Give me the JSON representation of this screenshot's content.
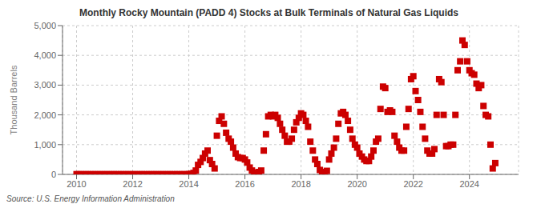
{
  "chart_data": {
    "type": "scatter",
    "title": "Monthly Rocky Mountain (PADD 4) Stocks at Bulk Terminals of Natural Gas Liquids",
    "ylabel": "Thousand Barrels",
    "annotations": [
      "Source: U.S. Energy Information Administration"
    ],
    "color": "#cc0000",
    "marker": "square",
    "grid": true,
    "xlim": [
      2009.5,
      2025.75
    ],
    "xticks": [
      2010,
      2012,
      2014,
      2016,
      2018,
      2020,
      2022,
      2024
    ],
    "ylim": [
      0,
      5000
    ],
    "yticks": [
      0,
      {
        "value": 1000,
        "label": "1,000"
      },
      {
        "value": 2000,
        "label": "2,000"
      },
      {
        "value": 3000,
        "label": "3,000"
      },
      {
        "value": 4000,
        "label": "4,000"
      },
      {
        "value": 5000,
        "label": "5,000"
      }
    ],
    "x": [
      2010.0,
      2010.08,
      2010.17,
      2010.25,
      2010.33,
      2010.42,
      2010.5,
      2010.58,
      2010.67,
      2010.75,
      2010.83,
      2010.92,
      2011.0,
      2011.08,
      2011.17,
      2011.25,
      2011.33,
      2011.42,
      2011.5,
      2011.58,
      2011.67,
      2011.75,
      2011.83,
      2011.92,
      2012.0,
      2012.08,
      2012.17,
      2012.25,
      2012.33,
      2012.42,
      2012.5,
      2012.58,
      2012.67,
      2012.75,
      2012.83,
      2012.92,
      2013.0,
      2013.08,
      2013.17,
      2013.25,
      2013.33,
      2013.42,
      2013.5,
      2013.58,
      2013.67,
      2013.75,
      2013.83,
      2013.92,
      2014.0,
      2014.08,
      2014.17,
      2014.25,
      2014.33,
      2014.42,
      2014.5,
      2014.58,
      2014.67,
      2014.75,
      2014.83,
      2014.92,
      2015.0,
      2015.08,
      2015.17,
      2015.25,
      2015.33,
      2015.42,
      2015.5,
      2015.58,
      2015.67,
      2015.75,
      2015.83,
      2015.92,
      2016.0,
      2016.08,
      2016.17,
      2016.25,
      2016.33,
      2016.42,
      2016.5,
      2016.58,
      2016.67,
      2016.75,
      2016.83,
      2016.92,
      2017.0,
      2017.08,
      2017.17,
      2017.25,
      2017.33,
      2017.42,
      2017.5,
      2017.58,
      2017.67,
      2017.75,
      2017.83,
      2017.92,
      2018.0,
      2018.08,
      2018.17,
      2018.25,
      2018.33,
      2018.42,
      2018.5,
      2018.58,
      2018.67,
      2018.75,
      2018.83,
      2018.92,
      2019.0,
      2019.08,
      2019.17,
      2019.25,
      2019.33,
      2019.42,
      2019.5,
      2019.58,
      2019.67,
      2019.75,
      2019.83,
      2019.92,
      2020.0,
      2020.08,
      2020.17,
      2020.25,
      2020.33,
      2020.42,
      2020.5,
      2020.58,
      2020.67,
      2020.75,
      2020.83,
      2020.92,
      2021.0,
      2021.08,
      2021.17,
      2021.25,
      2021.33,
      2021.42,
      2021.5,
      2021.58,
      2021.67,
      2021.75,
      2021.83,
      2021.92,
      2022.0,
      2022.08,
      2022.17,
      2022.25,
      2022.33,
      2022.42,
      2022.5,
      2022.58,
      2022.67,
      2022.75,
      2022.83,
      2022.92,
      2023.0,
      2023.08,
      2023.17,
      2023.25,
      2023.33,
      2023.42,
      2023.5,
      2023.58,
      2023.67,
      2023.75,
      2023.83,
      2023.92,
      2024.0,
      2024.08,
      2024.17,
      2024.25,
      2024.33,
      2024.42,
      2024.5,
      2024.58,
      2024.67,
      2024.75,
      2024.83,
      2024.92
    ],
    "values": [
      8,
      5,
      5,
      5,
      5,
      5,
      5,
      5,
      5,
      5,
      5,
      5,
      5,
      5,
      5,
      5,
      5,
      5,
      5,
      5,
      5,
      5,
      5,
      5,
      5,
      5,
      5,
      5,
      5,
      5,
      5,
      5,
      5,
      5,
      5,
      5,
      5,
      5,
      5,
      5,
      5,
      5,
      5,
      5,
      5,
      5,
      5,
      5,
      10,
      20,
      50,
      130,
      320,
      420,
      550,
      700,
      800,
      480,
      350,
      200,
      1300,
      1800,
      1950,
      1700,
      1400,
      1200,
      1100,
      900,
      700,
      580,
      550,
      550,
      500,
      400,
      230,
      130,
      60,
      60,
      80,
      130,
      800,
      1350,
      1950,
      2000,
      1950,
      2000,
      1900,
      1700,
      1500,
      1300,
      1100,
      1100,
      1200,
      1500,
      1750,
      1900,
      2050,
      2000,
      1800,
      1600,
      1100,
      800,
      500,
      350,
      150,
      80,
      60,
      120,
      500,
      700,
      900,
      1200,
      1700,
      2050,
      2100,
      2000,
      1800,
      1500,
      1200,
      1000,
      900,
      700,
      600,
      500,
      450,
      450,
      600,
      800,
      1100,
      1200,
      2200,
      2950,
      2900,
      2100,
      2150,
      2100,
      1300,
      1100,
      900,
      800,
      800,
      1600,
      2200,
      3200,
      3300,
      2800,
      2500,
      2100,
      1600,
      1200,
      800,
      700,
      700,
      850,
      2000,
      3200,
      3100,
      2000,
      950,
      950,
      1000,
      1000,
      2000,
      3500,
      3800,
      4500,
      4350,
      3800,
      3500,
      3400,
      3350,
      3050,
      2900,
      3000,
      2300,
      2000,
      1950,
      1000,
      200,
      380
    ]
  }
}
